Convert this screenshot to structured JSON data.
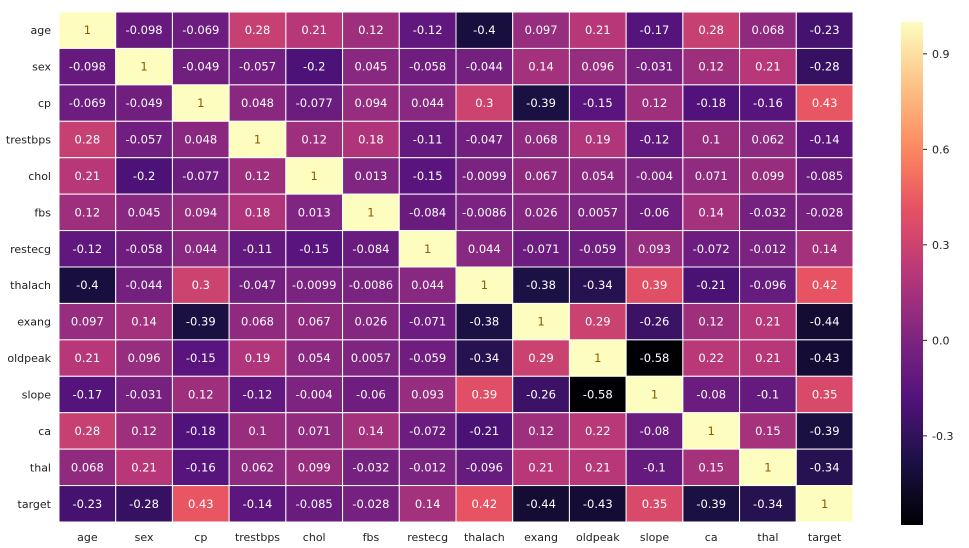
{
  "chart_data": {
    "type": "heatmap",
    "title": "",
    "xlabel": "",
    "ylabel": "",
    "labels": [
      "age",
      "sex",
      "cp",
      "trestbps",
      "chol",
      "fbs",
      "restecg",
      "thalach",
      "exang",
      "oldpeak",
      "slope",
      "ca",
      "thal",
      "target"
    ],
    "values": [
      [
        "1",
        "-0.098",
        "-0.069",
        "0.28",
        "0.21",
        "0.12",
        "-0.12",
        "-0.4",
        "0.097",
        "0.21",
        "-0.17",
        "0.28",
        "0.068",
        "-0.23"
      ],
      [
        "-0.098",
        "1",
        "-0.049",
        "-0.057",
        "-0.2",
        "0.045",
        "-0.058",
        "-0.044",
        "0.14",
        "0.096",
        "-0.031",
        "0.12",
        "0.21",
        "-0.28"
      ],
      [
        "-0.069",
        "-0.049",
        "1",
        "0.048",
        "-0.077",
        "0.094",
        "0.044",
        "0.3",
        "-0.39",
        "-0.15",
        "0.12",
        "-0.18",
        "-0.16",
        "0.43"
      ],
      [
        "0.28",
        "-0.057",
        "0.048",
        "1",
        "0.12",
        "0.18",
        "-0.11",
        "-0.047",
        "0.068",
        "0.19",
        "-0.12",
        "0.1",
        "0.062",
        "-0.14"
      ],
      [
        "0.21",
        "-0.2",
        "-0.077",
        "0.12",
        "1",
        "0.013",
        "-0.15",
        "-0.0099",
        "0.067",
        "0.054",
        "-0.004",
        "0.071",
        "0.099",
        "-0.085"
      ],
      [
        "0.12",
        "0.045",
        "0.094",
        "0.18",
        "0.013",
        "1",
        "-0.084",
        "-0.0086",
        "0.026",
        "0.0057",
        "-0.06",
        "0.14",
        "-0.032",
        "-0.028"
      ],
      [
        "-0.12",
        "-0.058",
        "0.044",
        "-0.11",
        "-0.15",
        "-0.084",
        "1",
        "0.044",
        "-0.071",
        "-0.059",
        "0.093",
        "-0.072",
        "-0.012",
        "0.14"
      ],
      [
        "-0.4",
        "-0.044",
        "0.3",
        "-0.047",
        "-0.0099",
        "-0.0086",
        "0.044",
        "1",
        "-0.38",
        "-0.34",
        "0.39",
        "-0.21",
        "-0.096",
        "0.42"
      ],
      [
        "0.097",
        "0.14",
        "-0.39",
        "0.068",
        "0.067",
        "0.026",
        "-0.071",
        "-0.38",
        "1",
        "0.29",
        "-0.26",
        "0.12",
        "0.21",
        "-0.44"
      ],
      [
        "0.21",
        "0.096",
        "-0.15",
        "0.19",
        "0.054",
        "0.0057",
        "-0.059",
        "-0.34",
        "0.29",
        "1",
        "-0.58",
        "0.22",
        "0.21",
        "-0.43"
      ],
      [
        "-0.17",
        "-0.031",
        "0.12",
        "-0.12",
        "-0.004",
        "-0.06",
        "0.093",
        "0.39",
        "-0.26",
        "-0.58",
        "1",
        "-0.08",
        "-0.1",
        "0.35"
      ],
      [
        "0.28",
        "0.12",
        "-0.18",
        "0.1",
        "0.071",
        "0.14",
        "-0.072",
        "-0.21",
        "0.12",
        "0.22",
        "-0.08",
        "1",
        "0.15",
        "-0.39"
      ],
      [
        "0.068",
        "0.21",
        "-0.16",
        "0.062",
        "0.099",
        "-0.032",
        "-0.012",
        "-0.096",
        "0.21",
        "0.21",
        "-0.1",
        "0.15",
        "1",
        "-0.34"
      ],
      [
        "-0.23",
        "-0.28",
        "0.43",
        "-0.14",
        "-0.085",
        "-0.028",
        "0.14",
        "0.42",
        "-0.44",
        "-0.43",
        "0.35",
        "-0.39",
        "-0.34",
        "1"
      ]
    ],
    "colorbar": {
      "range": [
        -0.58,
        1.0
      ],
      "ticks": [
        "0.9",
        "0.6",
        "0.3",
        "0.0",
        "-0.3"
      ],
      "colormap": "magma"
    },
    "annotation_colors": {
      "on_dark": "#ffffff",
      "on_light": "#8a5a00"
    }
  }
}
